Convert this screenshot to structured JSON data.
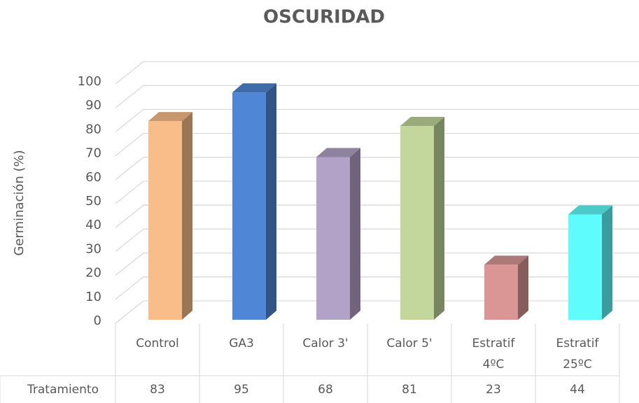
{
  "chart_data": {
    "type": "bar3d",
    "title": "OSCURIDAD",
    "y_label": "Germinación (%)",
    "categories": [
      "Control",
      "GA3",
      "Calor 3'",
      "Calor 5'",
      "Estratif 4ºC",
      "Estratif 25ºC"
    ],
    "series": [
      {
        "name": "Tratamiento",
        "values": [
          83,
          95,
          68,
          81,
          23,
          44
        ],
        "colors": [
          "#f9bd8a",
          "#4f86d6",
          "#b3a2c7",
          "#c3d69b",
          "#d99694",
          "#5ffcfd"
        ]
      }
    ],
    "ylim": [
      0,
      100
    ],
    "yticks": [
      0,
      10,
      20,
      30,
      40,
      50,
      60,
      70,
      80,
      90,
      100
    ],
    "grid": true
  }
}
